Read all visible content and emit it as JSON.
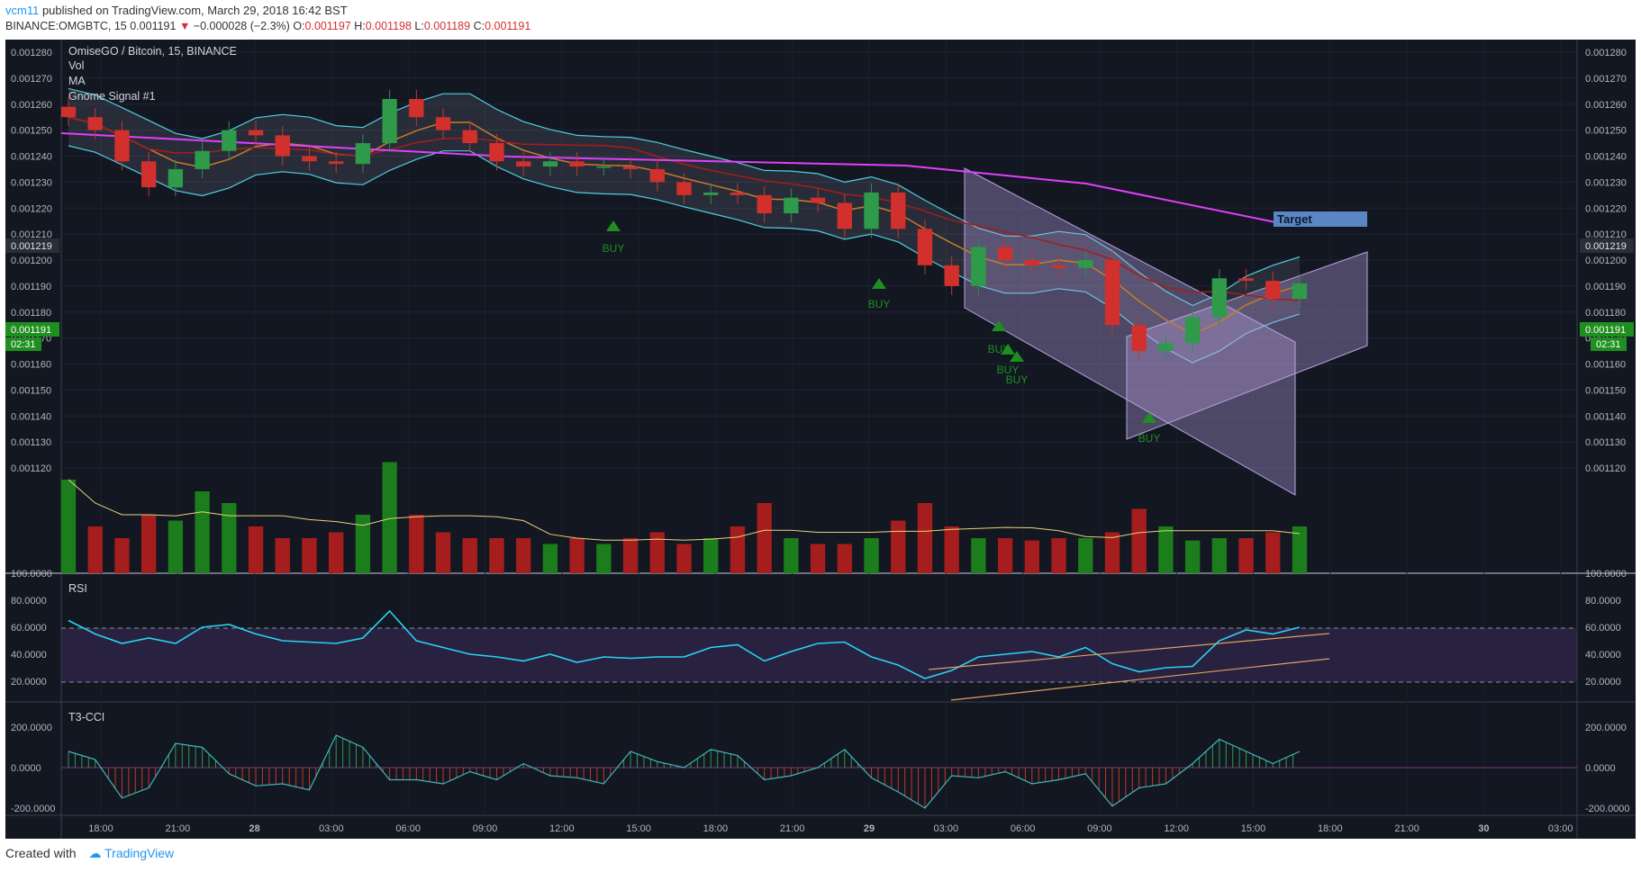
{
  "header": {
    "user": "vcm11",
    "published": "published on TradingView.com, March 29, 2018 16:42 BST",
    "symbol_line": "BINANCE:OMGBTC, 15",
    "last": "0.001191",
    "change": "−0.000028 (−2.3%)",
    "o_label": "O:",
    "o": "0.001197",
    "h_label": "H:",
    "h": "0.001198",
    "l_label": "L:",
    "l": "0.001189",
    "c_label": "C:",
    "c": "0.001191"
  },
  "legend": {
    "title": "OmiseGO / Bitcoin, 15, BINANCE",
    "items": [
      "Vol",
      "MA",
      "Gnome Signal #1"
    ]
  },
  "price_axis": {
    "ticks": [
      "0.001280",
      "0.001270",
      "0.001260",
      "0.001250",
      "0.001240",
      "0.001230",
      "0.001220",
      "0.001210",
      "0.001200",
      "0.001190",
      "0.001180",
      "0.001170",
      "0.001160",
      "0.001150",
      "0.001140",
      "0.001130",
      "0.001120"
    ],
    "ref_label": "0.001219",
    "last_label": "0.001191",
    "timer": "02:31"
  },
  "rsi": {
    "title": "RSI",
    "ticks": [
      "100.0000",
      "80.0000",
      "60.0000",
      "40.0000",
      "20.0000"
    ]
  },
  "cci": {
    "title": "T3-CCI",
    "ticks": [
      "200.0000",
      "0.0000",
      "-200.0000"
    ]
  },
  "time_axis": [
    "18:00",
    "21:00",
    "28",
    "03:00",
    "06:00",
    "09:00",
    "12:00",
    "15:00",
    "18:00",
    "21:00",
    "29",
    "03:00",
    "06:00",
    "09:00",
    "12:00",
    "15:00",
    "18:00",
    "21:00",
    "30",
    "03:00"
  ],
  "annotations": {
    "target": "Target",
    "buy": "BUY"
  },
  "colors": {
    "background": "#131722",
    "up": "#26a69a",
    "down": "#ef5350",
    "vol_up": "#1b7d1b",
    "vol_down": "#a51d1d",
    "bb": "#4dd0e1",
    "ma_fast": "#c77b2a",
    "ma_mid": "#a61c1c",
    "ma_slow": "#e040fb",
    "rsi": "#29d3f0",
    "buy": "#1e8e1e"
  },
  "chart_data": {
    "type": "candlestick",
    "title": "OmiseGO / Bitcoin, 15, BINANCE",
    "interval": "15",
    "ylim": [
      0.001115,
      0.001285
    ],
    "series": [
      {
        "name": "Close",
        "values": [
          0.001255,
          0.00125,
          0.001238,
          0.001228,
          0.001235,
          0.001242,
          0.00125,
          0.001248,
          0.00124,
          0.001238,
          0.001237,
          0.001245,
          0.001262,
          0.001255,
          0.00125,
          0.001245,
          0.001238,
          0.001236,
          0.001238,
          0.001236,
          0.001236,
          0.001235,
          0.00123,
          0.001225,
          0.001226,
          0.001225,
          0.001218,
          0.001224,
          0.001222,
          0.001212,
          0.001226,
          0.001212,
          0.001198,
          0.00119,
          0.001205,
          0.0012,
          0.001198,
          0.001197,
          0.0012,
          0.001175,
          0.001165,
          0.001168,
          0.001178,
          0.001193,
          0.001192,
          0.001185,
          0.001191
        ]
      },
      {
        "name": "RSI",
        "values": [
          65,
          55,
          48,
          52,
          48,
          60,
          62,
          55,
          50,
          49,
          48,
          52,
          72,
          50,
          45,
          40,
          38,
          35,
          40,
          34,
          38,
          37,
          38,
          38,
          45,
          47,
          35,
          42,
          48,
          49,
          38,
          32,
          22,
          28,
          38,
          40,
          42,
          38,
          45,
          33,
          27,
          30,
          31,
          50,
          58,
          55,
          60
        ]
      },
      {
        "name": "T3-CCI",
        "values": [
          80,
          40,
          -150,
          -100,
          120,
          100,
          -30,
          -90,
          -80,
          -110,
          160,
          100,
          -60,
          -60,
          -80,
          -20,
          -60,
          20,
          -40,
          -50,
          -80,
          80,
          30,
          0,
          90,
          60,
          -60,
          -40,
          0,
          90,
          -50,
          -120,
          -200,
          -40,
          -50,
          -20,
          -80,
          -60,
          -30,
          -190,
          -100,
          -80,
          20,
          140,
          80,
          20,
          80
        ]
      },
      {
        "name": "Volume",
        "values": [
          80,
          40,
          30,
          50,
          45,
          70,
          60,
          40,
          30,
          30,
          35,
          50,
          95,
          50,
          35,
          30,
          30,
          30,
          25,
          30,
          25,
          30,
          35,
          25,
          30,
          40,
          60,
          30,
          25,
          25,
          30,
          45,
          60,
          40,
          30,
          30,
          28,
          30,
          30,
          35,
          55,
          40,
          28,
          30,
          30,
          35,
          40
        ]
      }
    ],
    "annotations": [
      "Target",
      "BUY",
      "BUY",
      "BUY",
      "BUY",
      "BUY",
      "BUY"
    ]
  }
}
